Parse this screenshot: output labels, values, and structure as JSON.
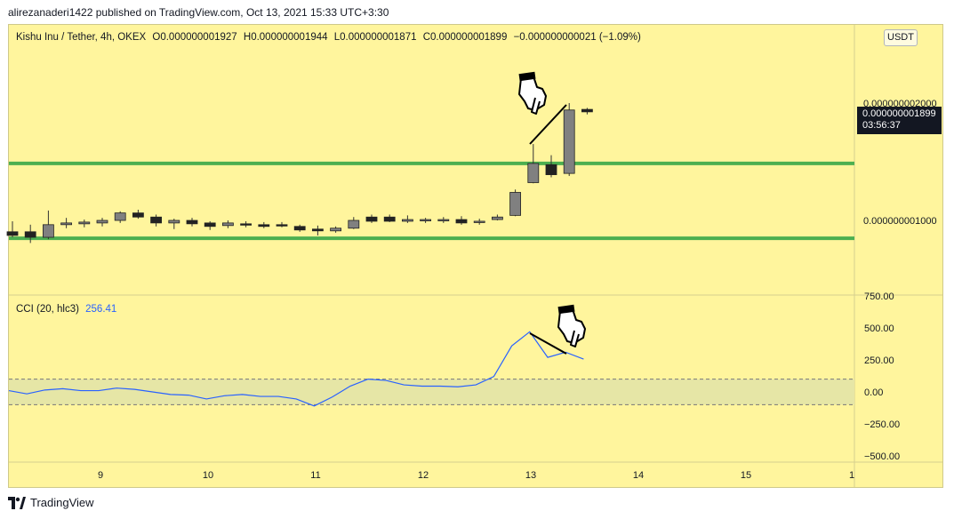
{
  "header": {
    "published_line": "alirezanaderi1422 published on TradingView.com, Oct 13, 2021 15:33 UTC+3:30"
  },
  "legend": {
    "symbol": "Kishu Inu / Tether, 4h, OKEX",
    "open": "O0.000000001927",
    "high": "H0.000000001944",
    "low": "L0.000000001871",
    "close": "C0.000000001899",
    "change": "−0.000000000021 (−1.09%)"
  },
  "currency_badge": "USDT",
  "price_tag": {
    "price": "0.000000001899",
    "countdown": "03:56:37"
  },
  "cci": {
    "label": "CCI (20, hlc3)",
    "value": "256.41"
  },
  "footer": {
    "brand": "TradingView"
  },
  "colors": {
    "background": "#fff59d",
    "up_candle": "#808080",
    "down_candle": "#222222",
    "support_line": "#4caf50",
    "cci_line": "#2962ff",
    "cci_band": "#e6e6a6",
    "price_tag": "#131722"
  },
  "chart_data": [
    {
      "type": "candlestick",
      "title": "Kishu Inu / Tether, 4h, OKEX",
      "y_axis": {
        "side": "right",
        "tick_labels": [
          "0.000000002000",
          "0.000000001000"
        ],
        "tick_values": [
          2e-09,
          1e-09
        ],
        "log_scale": true
      },
      "x_axis": {
        "tick_labels": [
          "9",
          "10",
          "11",
          "12",
          "13",
          "14",
          "15",
          "1"
        ]
      },
      "horizontal_lines": [
        {
          "name": "resistance",
          "value": 1.4e-09,
          "color": "#4caf50"
        },
        {
          "name": "support",
          "value": 9e-10,
          "color": "#4caf50"
        }
      ],
      "candles": [
        {
          "o": 0.935,
          "h": 0.995,
          "l": 0.905,
          "c": 0.915
        },
        {
          "o": 0.935,
          "h": 0.975,
          "l": 0.875,
          "c": 0.905
        },
        {
          "o": 0.905,
          "h": 1.06,
          "l": 0.895,
          "c": 0.975
        },
        {
          "o": 0.975,
          "h": 1.015,
          "l": 0.955,
          "c": 0.985
        },
        {
          "o": 0.98,
          "h": 1.005,
          "l": 0.96,
          "c": 0.99
        },
        {
          "o": 0.985,
          "h": 1.015,
          "l": 0.965,
          "c": 1.0
        },
        {
          "o": 1.0,
          "h": 1.055,
          "l": 0.985,
          "c": 1.045
        },
        {
          "o": 1.045,
          "h": 1.065,
          "l": 1.01,
          "c": 1.02
        },
        {
          "o": 1.02,
          "h": 1.035,
          "l": 0.965,
          "c": 0.985
        },
        {
          "o": 0.985,
          "h": 1.01,
          "l": 0.95,
          "c": 1.0
        },
        {
          "o": 1.0,
          "h": 1.015,
          "l": 0.965,
          "c": 0.98
        },
        {
          "o": 0.985,
          "h": 0.995,
          "l": 0.945,
          "c": 0.965
        },
        {
          "o": 0.97,
          "h": 1.0,
          "l": 0.955,
          "c": 0.985
        },
        {
          "o": 0.98,
          "h": 0.995,
          "l": 0.96,
          "c": 0.975
        },
        {
          "o": 0.975,
          "h": 0.99,
          "l": 0.955,
          "c": 0.965
        },
        {
          "o": 0.975,
          "h": 0.99,
          "l": 0.96,
          "c": 0.97
        },
        {
          "o": 0.965,
          "h": 0.975,
          "l": 0.935,
          "c": 0.945
        },
        {
          "o": 0.95,
          "h": 0.97,
          "l": 0.915,
          "c": 0.94
        },
        {
          "o": 0.94,
          "h": 0.965,
          "l": 0.93,
          "c": 0.955
        },
        {
          "o": 0.955,
          "h": 1.02,
          "l": 0.95,
          "c": 1.0
        },
        {
          "o": 1.02,
          "h": 1.035,
          "l": 0.985,
          "c": 0.995
        },
        {
          "o": 1.02,
          "h": 1.035,
          "l": 0.99,
          "c": 0.995
        },
        {
          "o": 0.995,
          "h": 1.03,
          "l": 0.985,
          "c": 1.005
        },
        {
          "o": 1.0,
          "h": 1.015,
          "l": 0.985,
          "c": 1.005
        },
        {
          "o": 1.0,
          "h": 1.02,
          "l": 0.985,
          "c": 1.005
        },
        {
          "o": 1.005,
          "h": 1.025,
          "l": 0.975,
          "c": 0.985
        },
        {
          "o": 0.995,
          "h": 1.01,
          "l": 0.975,
          "c": 0.995
        },
        {
          "o": 1.005,
          "h": 1.035,
          "l": 1.0,
          "c": 1.02
        },
        {
          "o": 1.03,
          "h": 1.2,
          "l": 1.025,
          "c": 1.18
        },
        {
          "o": 1.25,
          "h": 1.57,
          "l": 1.245,
          "c": 1.4
        },
        {
          "o": 1.39,
          "h": 1.47,
          "l": 1.29,
          "c": 1.31
        },
        {
          "o": 1.32,
          "h": 2.0,
          "l": 1.3,
          "c": 1.92
        },
        {
          "o": 1.927,
          "h": 1.944,
          "l": 1.871,
          "c": 1.899
        }
      ],
      "value_unit": "1e-9 USDT"
    },
    {
      "type": "line",
      "title": "CCI (20, hlc3)",
      "y_axis": {
        "side": "right",
        "tick_labels": [
          "750.00",
          "500.00",
          "250.00",
          "0.00",
          "−250.00",
          "−500.00"
        ],
        "tick_values": [
          750,
          500,
          250,
          0,
          -250,
          -500
        ]
      },
      "bands": [
        100,
        -100
      ],
      "series": [
        {
          "values": [
            10,
            -15,
            15,
            25,
            10,
            10,
            30,
            20,
            0,
            -20,
            -25,
            -55,
            -30,
            -20,
            -35,
            -35,
            -55,
            -110,
            -40,
            45,
            100,
            90,
            55,
            45,
            45,
            40,
            55,
            120,
            360,
            470,
            270,
            310,
            256.41
          ]
        }
      ]
    }
  ]
}
